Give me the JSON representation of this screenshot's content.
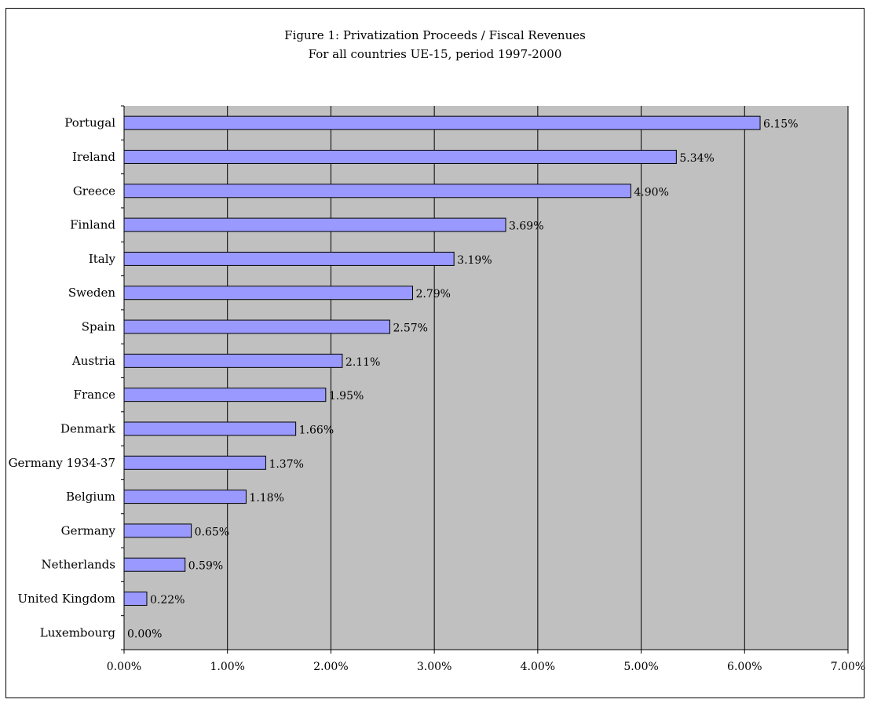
{
  "chart_data": {
    "type": "bar",
    "orientation": "horizontal",
    "title": "Figure 1:  Privatization Proceeds / Fiscal Revenues",
    "subtitle": "For all countries UE-15, period 1997-2000",
    "xlabel": "",
    "ylabel": "",
    "xlim": [
      0,
      7
    ],
    "x_ticks": [
      "0.00%",
      "1.00%",
      "2.00%",
      "3.00%",
      "4.00%",
      "5.00%",
      "6.00%",
      "7.00%"
    ],
    "categories": [
      "Portugal",
      "Ireland",
      "Greece",
      "Finland",
      "Italy",
      "Sweden",
      "Spain",
      "Austria",
      "France",
      "Denmark",
      "Germany 1934-37",
      "Belgium",
      "Germany",
      "Netherlands",
      "United Kingdom",
      "Luxembourg"
    ],
    "values": [
      6.15,
      5.34,
      4.9,
      3.69,
      3.19,
      2.79,
      2.57,
      2.11,
      1.95,
      1.66,
      1.37,
      1.18,
      0.65,
      0.59,
      0.22,
      0.0
    ],
    "data_labels": [
      "6.15%",
      "5.34%",
      "4.90%",
      "3.69%",
      "3.19%",
      "2.79%",
      "2.57%",
      "2.11%",
      "1.95%",
      "1.66%",
      "1.37%",
      "1.18%",
      "0.65%",
      "0.59%",
      "0.22%",
      "0.00%"
    ],
    "grid": true,
    "legend": "none",
    "colors": {
      "bar": "#9999ff",
      "bar_border": "#000000",
      "plot_background": "#c0c0c0",
      "gridline": "#000000"
    }
  }
}
